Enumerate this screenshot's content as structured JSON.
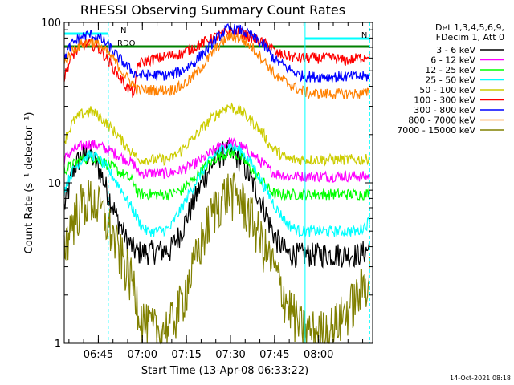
{
  "chart_data": {
    "type": "line",
    "title": "RHESSI Observing Summary Count Rates",
    "xlabel": "Start Time (13-Apr-08 06:33:22)",
    "ylabel": "Count Rate (s⁻¹ detector⁻¹)",
    "yscale": "log",
    "ylim": [
      1,
      100
    ],
    "xlim_minutes_after_start": [
      0,
      105
    ],
    "x_tick_labels": [
      "06:45",
      "07:00",
      "07:15",
      "07:30",
      "07:45",
      "08:00"
    ],
    "x_tick_minutes_after_start": [
      11.6,
      26.6,
      41.6,
      56.6,
      71.6,
      86.6
    ],
    "y_tick_labels": [
      "1",
      "10",
      "100"
    ],
    "y_tick_values": [
      1,
      10,
      100
    ],
    "legend_header": [
      "Det 1,3,4,5,6,9,",
      "FDecim 1, Att 0"
    ],
    "legend_placement": "right, outside plot",
    "series": [
      {
        "name": "3 - 6 keV",
        "color": "#000000",
        "x": [
          0,
          1.5,
          3,
          6,
          9,
          12,
          15,
          18,
          21,
          24,
          25,
          28,
          32,
          36,
          40,
          44,
          48,
          52,
          56,
          60,
          64,
          68,
          70,
          72,
          76,
          80,
          84,
          88,
          92,
          96,
          100,
          103,
          104
        ],
        "y": [
          7,
          9,
          12,
          15,
          15,
          12,
          8.5,
          6,
          4.5,
          3.8,
          3.7,
          3.7,
          3.8,
          3.8,
          5,
          7.5,
          11,
          14.5,
          16,
          14,
          10,
          7,
          5.5,
          4.5,
          3.6,
          3.6,
          3.6,
          3.6,
          3.6,
          3.6,
          3.6,
          3.8,
          4
        ]
      },
      {
        "name": "6 - 12 keV",
        "color": "#ff00ff",
        "x": [
          0,
          1.5,
          3,
          6,
          9,
          12,
          15,
          18,
          21,
          24,
          25,
          28,
          32,
          36,
          40,
          44,
          48,
          52,
          56,
          60,
          64,
          68,
          70,
          72,
          76,
          80,
          84,
          88,
          92,
          96,
          100,
          103,
          104
        ],
        "y": [
          14,
          15,
          16,
          17,
          17.5,
          17,
          16,
          15,
          14,
          13,
          11.5,
          11.5,
          11.5,
          11.5,
          12,
          13,
          14.5,
          16.5,
          18,
          17,
          15,
          13,
          12,
          11.5,
          11,
          11,
          11,
          11,
          11,
          11,
          11,
          11,
          11
        ]
      },
      {
        "name": "12 - 25 keV",
        "color": "#00ff00",
        "x": [
          0,
          1.5,
          3,
          6,
          9,
          12,
          15,
          18,
          21,
          24,
          25,
          28,
          32,
          36,
          40,
          44,
          48,
          52,
          56,
          60,
          64,
          68,
          70,
          72,
          76,
          80,
          84,
          88,
          92,
          96,
          100,
          103,
          104
        ],
        "y": [
          12,
          12.5,
          13,
          14,
          14.5,
          14,
          13,
          12,
          11,
          10,
          8.5,
          8.5,
          8.5,
          8.5,
          9,
          10.5,
          12.5,
          14.5,
          15.5,
          14.5,
          12,
          10,
          9,
          8.5,
          8.5,
          8.5,
          8.5,
          8.5,
          8.5,
          8.5,
          8.5,
          8.5,
          9
        ]
      },
      {
        "name": "25 - 50 keV",
        "color": "#00ffff",
        "x": [
          0,
          1.5,
          3,
          6,
          9,
          12,
          15,
          18,
          21,
          24,
          26,
          28,
          32,
          36,
          40,
          44,
          48,
          52,
          56,
          60,
          64,
          68,
          72,
          76,
          80,
          84,
          88,
          92,
          96,
          100,
          103,
          104
        ],
        "y": [
          9,
          10.5,
          12,
          14,
          15,
          14,
          12,
          10,
          8,
          6.5,
          5.5,
          5,
          5,
          5.2,
          7,
          9.5,
          12.5,
          15.5,
          17,
          16,
          13,
          9.5,
          7,
          5.5,
          5,
          5,
          5,
          5,
          5,
          5,
          5.5,
          6
        ]
      },
      {
        "name": "50 - 100 keV",
        "color": "#cccc00",
        "x": [
          0,
          1.5,
          3,
          6,
          9,
          12,
          15,
          18,
          21,
          24,
          25,
          28,
          32,
          36,
          40,
          44,
          48,
          52,
          56,
          60,
          64,
          68,
          70,
          72,
          76,
          80,
          84,
          88,
          92,
          96,
          100,
          103,
          104
        ],
        "y": [
          18,
          21,
          24,
          27,
          28,
          26,
          23,
          20,
          17,
          15,
          14,
          14,
          14,
          14,
          16,
          19,
          23,
          27,
          30,
          28,
          24,
          20,
          17,
          16,
          14,
          14,
          14,
          14,
          14,
          14,
          14,
          14,
          15
        ]
      },
      {
        "name": "100 - 300 keV",
        "color": "#ff0000",
        "x": [
          0,
          1.5,
          3,
          6,
          9,
          12,
          15,
          18,
          21,
          24,
          25,
          28,
          32,
          36,
          40,
          44,
          48,
          52,
          56,
          60,
          64,
          68,
          70,
          72,
          76,
          80,
          84,
          88,
          92,
          96,
          100,
          103,
          104
        ],
        "y": [
          45,
          55,
          63,
          72,
          74,
          68,
          58,
          48,
          40,
          36,
          55,
          58,
          60,
          62,
          64,
          70,
          76,
          82,
          88,
          86,
          80,
          74,
          72,
          64,
          62,
          60,
          60,
          60,
          60,
          58,
          60,
          62,
          64
        ]
      },
      {
        "name": "300 - 800 keV",
        "color": "#0000ff",
        "x": [
          0,
          1.5,
          3,
          6,
          9,
          12,
          15,
          18,
          21,
          24,
          25,
          28,
          32,
          36,
          40,
          44,
          48,
          52,
          56,
          60,
          64,
          68,
          70,
          72,
          76,
          80,
          84,
          88,
          92,
          96,
          100,
          103,
          104
        ],
        "y": [
          60,
          68,
          75,
          82,
          84,
          80,
          72,
          62,
          54,
          48,
          47,
          47,
          47,
          47,
          50,
          56,
          66,
          80,
          92,
          90,
          82,
          72,
          64,
          58,
          52,
          47,
          46,
          46,
          46,
          46,
          46,
          46,
          47
        ]
      },
      {
        "name": "800 - 7000 keV",
        "color": "#ff8000",
        "x": [
          0,
          1.5,
          3,
          6,
          9,
          12,
          15,
          18,
          21,
          24,
          25,
          28,
          32,
          36,
          40,
          44,
          48,
          52,
          56,
          60,
          64,
          68,
          70,
          72,
          76,
          80,
          84,
          88,
          92,
          96,
          100,
          103,
          104
        ],
        "y": [
          55,
          62,
          68,
          74,
          76,
          72,
          64,
          55,
          46,
          40,
          38,
          38,
          38,
          38,
          40,
          46,
          56,
          70,
          82,
          80,
          70,
          58,
          52,
          46,
          42,
          38,
          36,
          36,
          36,
          36,
          36,
          36,
          37
        ]
      },
      {
        "name": "7000 - 15000 keV",
        "color": "#808000",
        "x": [
          0,
          1.5,
          3,
          6,
          9,
          12,
          15,
          18,
          21,
          24,
          26,
          28,
          32,
          36,
          40,
          44,
          48,
          52,
          56,
          60,
          64,
          68,
          72,
          74,
          76,
          80,
          84,
          88,
          92,
          96,
          100,
          103,
          104
        ],
        "y": [
          4,
          5,
          6,
          7.5,
          8,
          7,
          5.5,
          4,
          3,
          2.2,
          1.5,
          1.3,
          1.2,
          1.3,
          1.8,
          3,
          5,
          7.5,
          9,
          8,
          6,
          4,
          2.8,
          2.2,
          1.8,
          1.3,
          1.2,
          1.2,
          1.3,
          1.6,
          2,
          2.5,
          2.8
        ]
      }
    ],
    "flag_bars": [
      {
        "label": "N",
        "color": "#00ffff",
        "x": [
          0,
          15
        ]
      },
      {
        "label": "N",
        "color": "#00ffff",
        "x": [
          82,
          104
        ]
      },
      {
        "label": "RDO",
        "color": "#008000",
        "x": [
          0,
          104
        ]
      },
      {
        "label": "",
        "color": "#008000",
        "x": [
          20,
          43
        ]
      },
      {
        "label": "",
        "color": "#008000",
        "x": [
          72,
          104
        ]
      }
    ],
    "vertical_markers": [
      {
        "x": 0,
        "style": "solid",
        "color": "#00ffff"
      },
      {
        "x": 15,
        "style": "dashed",
        "color": "#00ffff"
      },
      {
        "x": 82,
        "style": "solid",
        "color": "#00ffff"
      },
      {
        "x": 104,
        "style": "dashed",
        "color": "#00ffff"
      }
    ]
  },
  "footer": {
    "timestamp": "14-Oct-2021 08:18"
  }
}
